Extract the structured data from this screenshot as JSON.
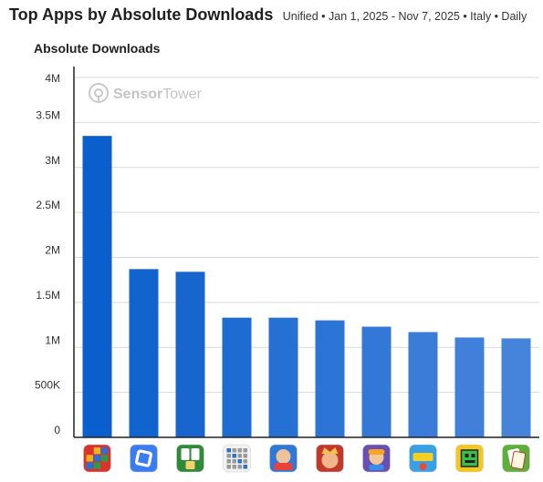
{
  "header": {
    "title": "Top Apps by Absolute Downloads",
    "subtitle": "Unified • Jan 1, 2025 - Nov 7, 2025 • Italy • Daily"
  },
  "watermark": {
    "brand_part1": "Sensor",
    "brand_part2": "Tower"
  },
  "chart_data": {
    "type": "bar",
    "title": "Top Apps by Absolute Downloads",
    "ylabel": "Absolute Downloads",
    "xlabel": "",
    "ylim": [
      0,
      4000000
    ],
    "yticks": [
      {
        "value": 0,
        "label": "0"
      },
      {
        "value": 500000,
        "label": "500K"
      },
      {
        "value": 1000000,
        "label": "1M"
      },
      {
        "value": 1500000,
        "label": "1.5M"
      },
      {
        "value": 2000000,
        "label": "2M"
      },
      {
        "value": 2500000,
        "label": "2.5M"
      },
      {
        "value": 3000000,
        "label": "3M"
      },
      {
        "value": 3500000,
        "label": "3.5M"
      },
      {
        "value": 4000000,
        "label": "4M"
      }
    ],
    "grid": true,
    "legend": "none",
    "categories": [
      {
        "icon": "block-puzzle-app-icon",
        "colors": [
          "#d9342b",
          "#f2b01e",
          "#2a6fd6",
          "#2e9a45"
        ]
      },
      {
        "icon": "roblox-app-icon",
        "colors": [
          "#3b7cf0",
          "#ffffff"
        ]
      },
      {
        "icon": "mahjong-app-icon",
        "colors": [
          "#2f8a3a",
          "#ffffff"
        ]
      },
      {
        "icon": "word-search-app-icon",
        "colors": [
          "#f2f2f2",
          "#2a6fd6"
        ]
      },
      {
        "icon": "clash-royale-app-icon",
        "colors": [
          "#2f78d8",
          "#e8423a"
        ]
      },
      {
        "icon": "royal-match-app-icon",
        "colors": [
          "#c0392b",
          "#f2c14e"
        ]
      },
      {
        "icon": "subway-surfers-app-icon",
        "colors": [
          "#6a4fb3",
          "#f5a623"
        ]
      },
      {
        "icon": "pokemon-tcg-pocket-app-icon",
        "colors": [
          "#39a0e6",
          "#f5d023"
        ]
      },
      {
        "icon": "geometry-dash-app-icon",
        "colors": [
          "#f2c81e",
          "#3cbf4a"
        ]
      },
      {
        "icon": "solitaire-app-icon",
        "colors": [
          "#5fae3a",
          "#c0392b"
        ]
      }
    ],
    "values": [
      3350000,
      1870000,
      1840000,
      1330000,
      1330000,
      1300000,
      1230000,
      1170000,
      1110000,
      1100000
    ],
    "bar_colors": [
      "#0a5fcc",
      "#1163cd",
      "#1766ce",
      "#1e6bd1",
      "#2570d3",
      "#2c74d5",
      "#3378d6",
      "#3a7cd8",
      "#4080da",
      "#4684dc"
    ],
    "axis_color": "#222222",
    "grid_color": "#d9d9d9"
  }
}
